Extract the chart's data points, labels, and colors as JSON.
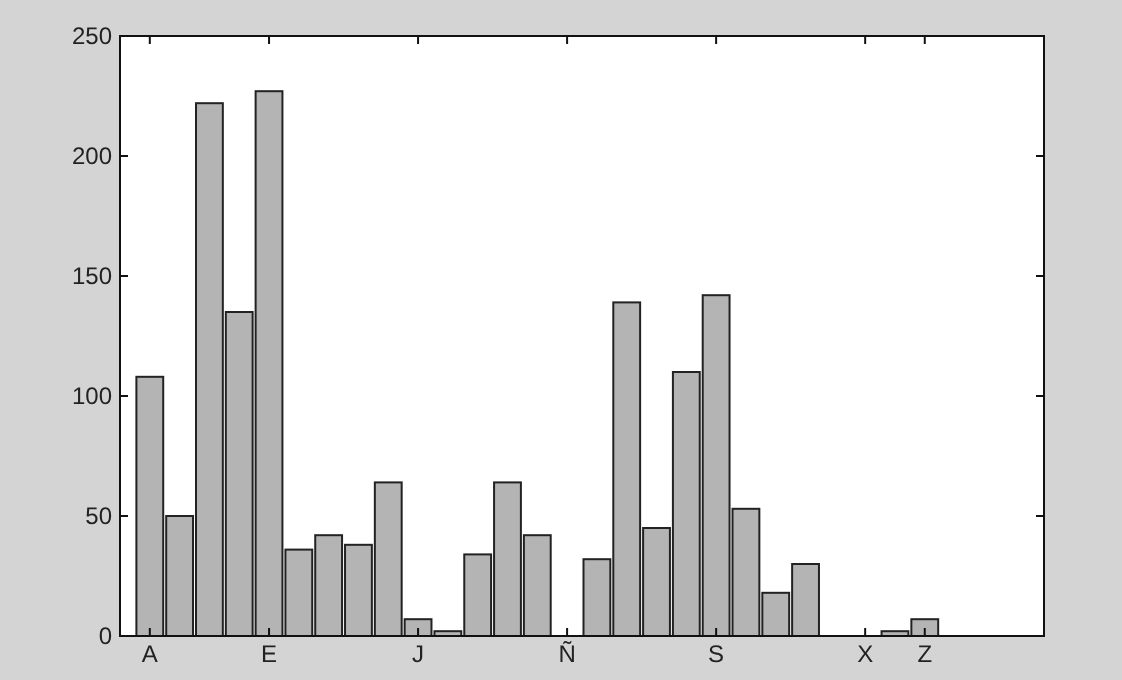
{
  "chart_data": {
    "type": "bar",
    "categories": [
      "A",
      null,
      null,
      null,
      "E",
      null,
      null,
      null,
      null,
      "J",
      null,
      null,
      null,
      null,
      "Ñ",
      null,
      null,
      null,
      null,
      "S",
      null,
      null,
      null,
      null,
      "X",
      null,
      "Z"
    ],
    "values": [
      108,
      50,
      222,
      135,
      227,
      36,
      42,
      38,
      64,
      7,
      2,
      34,
      64,
      42,
      0,
      32,
      139,
      45,
      110,
      142,
      53,
      18,
      30,
      0,
      0,
      2,
      7
    ],
    "color": "#b4b4b4",
    "ylim": [
      0,
      250
    ],
    "yticks": [
      0,
      50,
      100,
      150,
      200,
      250
    ],
    "grid": false
  }
}
